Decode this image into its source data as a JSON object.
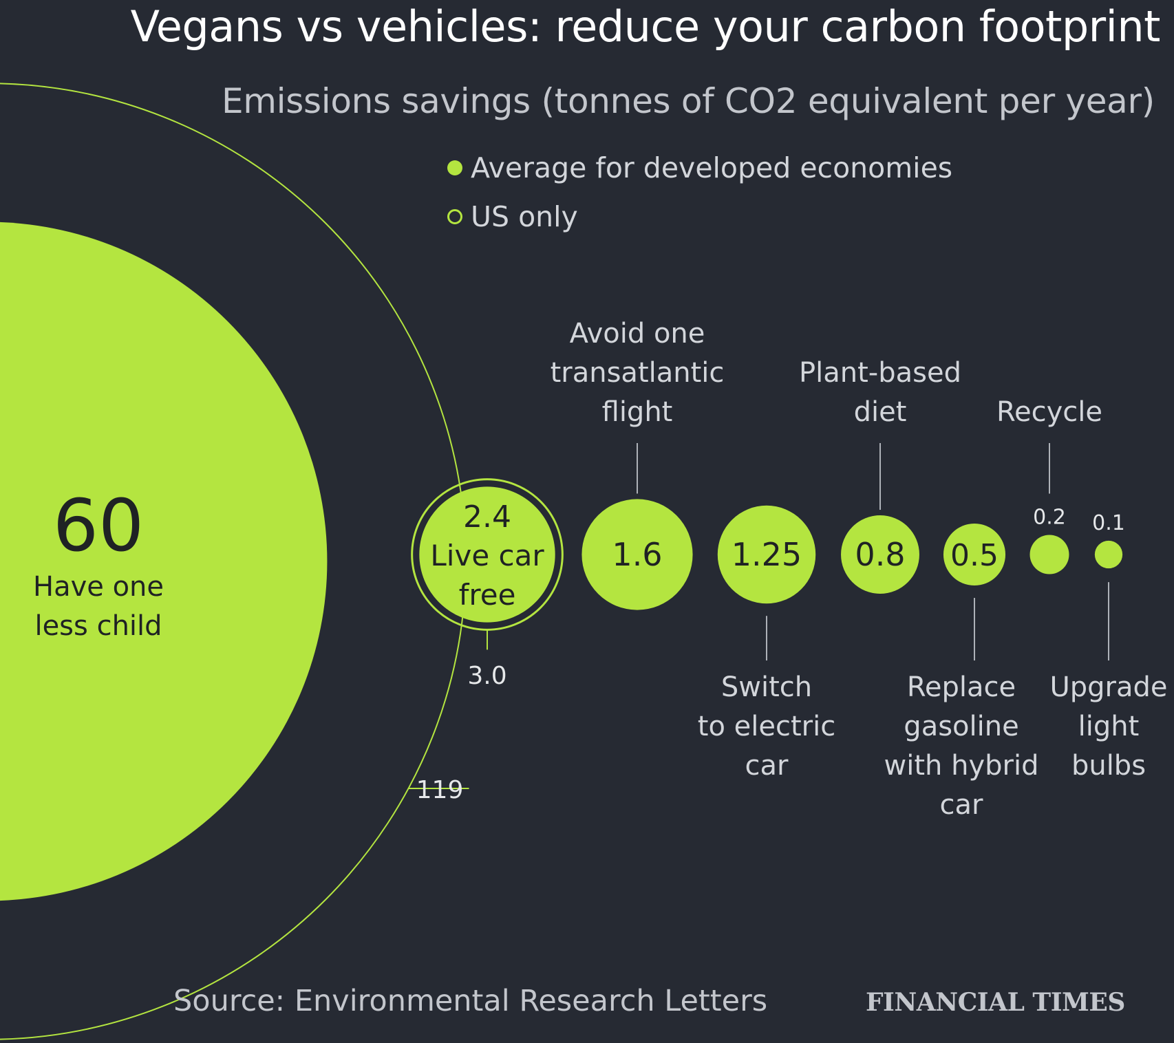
{
  "title": "Vegans vs vehicles: reduce your carbon footprint",
  "subtitle": "Emissions savings (tonnes of CO2 equivalent per year)",
  "legend": {
    "average": "Average for developed economies",
    "us": "US only"
  },
  "source": "Source: Environmental Research Letters",
  "brand": "FINANCIAL TIMES",
  "colors": {
    "background": "#262a33",
    "accent": "#b4e540",
    "text_light": "#d3d6db",
    "text_dark": "#1f2224"
  },
  "chart_data": {
    "type": "bubble",
    "series": [
      {
        "name": "Average for developed economies",
        "style": "filled"
      },
      {
        "name": "US only",
        "style": "outline"
      }
    ],
    "items": [
      {
        "label": [
          "Have one",
          "less child"
        ],
        "average": 60,
        "average_text": "60",
        "us": 119,
        "us_text": "119"
      },
      {
        "label": [
          "Live car",
          "free"
        ],
        "average": 2.4,
        "average_text": "2.4",
        "us": 3.0,
        "us_text": "3.0"
      },
      {
        "label": [
          "Avoid one",
          "transatlantic",
          "flight"
        ],
        "average": 1.6,
        "average_text": "1.6"
      },
      {
        "label": [
          "Switch",
          "to electric",
          "car"
        ],
        "average": 1.25,
        "average_text": "1.25"
      },
      {
        "label": [
          "Plant-based",
          "diet"
        ],
        "average": 0.8,
        "average_text": "0.8"
      },
      {
        "label": [
          "Replace",
          "gasoline",
          "with hybrid",
          "car"
        ],
        "average": 0.5,
        "average_text": "0.5"
      },
      {
        "label": [
          "Recycle"
        ],
        "average": 0.2,
        "average_text": "0.2"
      },
      {
        "label": [
          "Upgrade",
          "light",
          "bulbs"
        ],
        "average": 0.1,
        "average_text": "0.1"
      }
    ]
  }
}
